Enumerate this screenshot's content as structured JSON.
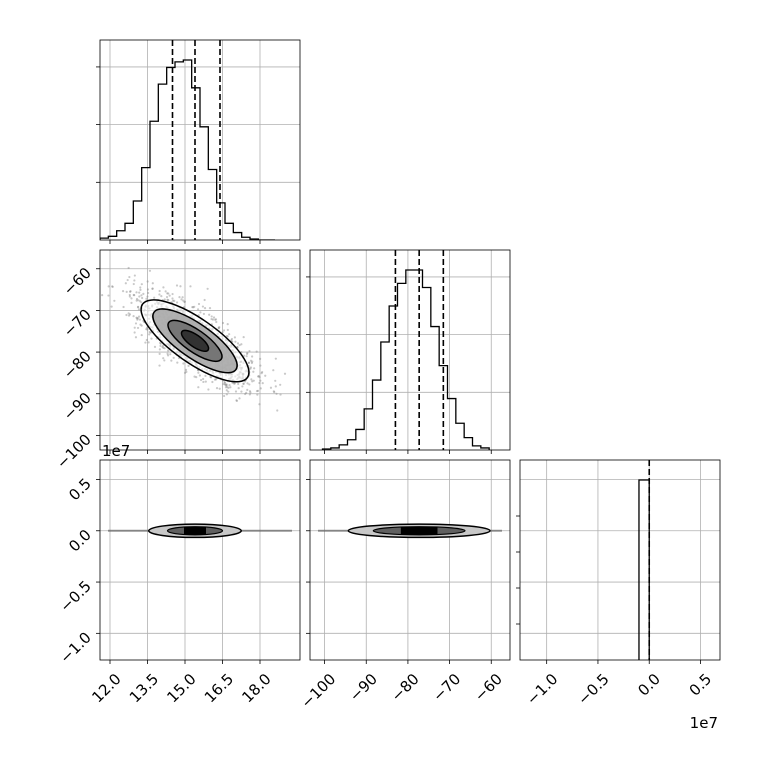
{
  "chart_data": {
    "type": "corner",
    "grid": true,
    "params": [
      {
        "ticks": [
          12.0,
          13.5,
          15.0,
          16.5,
          18.0
        ],
        "tick_labels": [
          "12.0",
          "13.5",
          "15.0",
          "16.5",
          "18.0"
        ],
        "range": [
          11.6,
          19.6
        ],
        "quantiles": [
          14.5,
          15.4,
          16.4
        ]
      },
      {
        "ticks": [
          -100,
          -90,
          -80,
          -70,
          -60
        ],
        "tick_labels": [
          "−100",
          "−90",
          "−80",
          "−70",
          "−60"
        ],
        "range": [
          -103.5,
          -55.5
        ],
        "quantiles": [
          -83,
          -77.3,
          -71.5
        ]
      },
      {
        "ticks": [
          -1.0,
          -0.5,
          0.0,
          0.5
        ],
        "tick_labels": [
          "−1.0",
          "−0.5",
          "0.0",
          "0.5"
        ],
        "range": [
          -1.26,
          0.69
        ],
        "quantiles": [
          0.0,
          0.0,
          0.0
        ],
        "offset_label": "1e7"
      }
    ],
    "hist_0": {
      "bin_edges": [
        11.6,
        11.933,
        12.267,
        12.6,
        12.933,
        13.267,
        13.6,
        13.933,
        14.267,
        14.6,
        14.933,
        15.267,
        15.6,
        15.933,
        16.267,
        16.6,
        16.933,
        17.267,
        17.6,
        17.933,
        18.267,
        18.6
      ],
      "counts": [
        2,
        4,
        10,
        18,
        42,
        78,
        128,
        168,
        186,
        192,
        194,
        164,
        122,
        76,
        40,
        18,
        8,
        3,
        1,
        0,
        0
      ]
    },
    "hist_1": {
      "bin_edges": [
        -100.5,
        -98.5,
        -96.5,
        -94.5,
        -92.5,
        -90.5,
        -88.5,
        -86.5,
        -84.5,
        -82.5,
        -80.5,
        -78.5,
        -76.5,
        -74.5,
        -72.5,
        -70.5,
        -68.5,
        -66.5,
        -64.5,
        -62.5,
        -60.5
      ],
      "counts": [
        1,
        2,
        5,
        10,
        20,
        40,
        68,
        105,
        140,
        162,
        175,
        175,
        158,
        120,
        82,
        50,
        26,
        12,
        4,
        2
      ]
    },
    "hist_2": {
      "bin_edges": [
        -0.1,
        0.0
      ],
      "counts": [
        1
      ]
    },
    "contours_01": {
      "center": [
        15.4,
        -77.3
      ],
      "ellipses": [
        {
          "a": 3.2,
          "b": 1.1,
          "angle_deg": 35,
          "fill": "#ffffff"
        },
        {
          "a": 2.5,
          "b": 0.85,
          "angle_deg": 35,
          "fill": "#a9a9a9"
        },
        {
          "a": 1.6,
          "b": 0.55,
          "angle_deg": 35,
          "fill": "#707070"
        },
        {
          "a": 0.8,
          "b": 0.3,
          "angle_deg": 35,
          "fill": "#2b2b2b"
        }
      ]
    },
    "contours_row2": [
      {
        "center": [
          15.4,
          0.0
        ],
        "x_half_widths": [
          1.85,
          1.1
        ],
        "y_half_heights": [
          0.065,
          0.04
        ]
      },
      {
        "center": [
          -77.3,
          0.0
        ],
        "x_half_widths": [
          17.0,
          11.0
        ],
        "y_half_heights": [
          0.065,
          0.04
        ]
      }
    ]
  }
}
